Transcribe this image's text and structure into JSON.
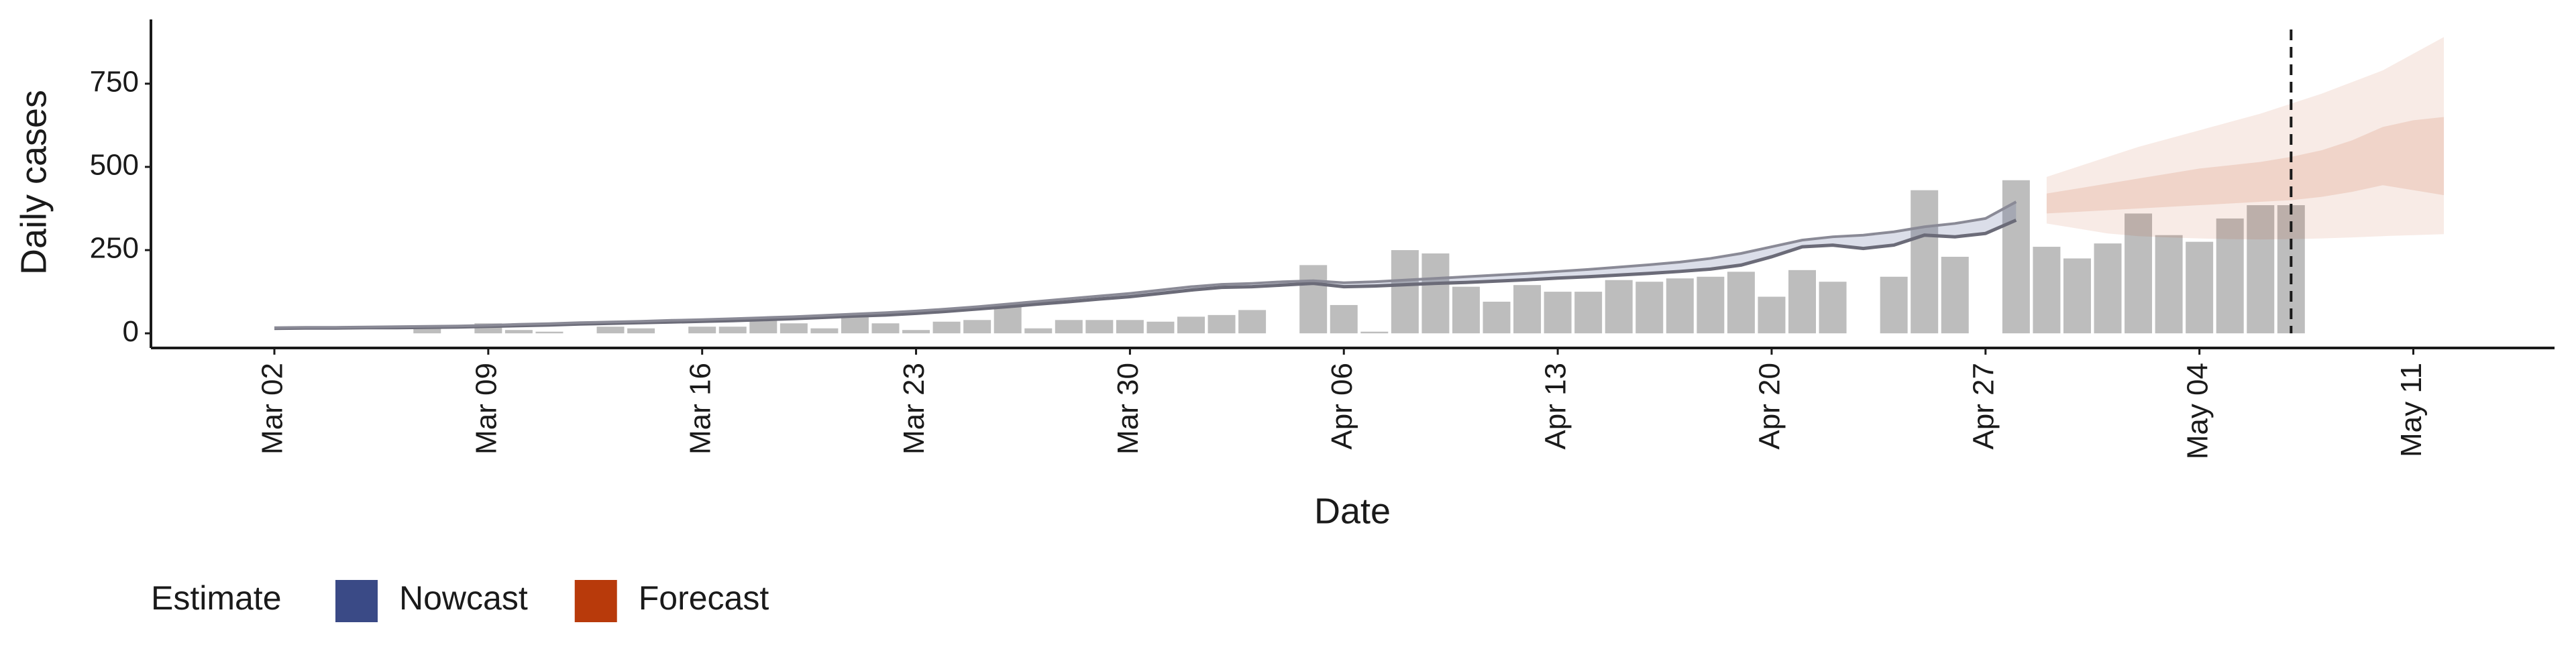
{
  "chart_data": {
    "type": "combo",
    "x_label": "Date",
    "y_label": "Daily cases",
    "legend_title": "Estimate",
    "legend_position": "bottom-left",
    "categories": [
      "Mar 02",
      null,
      null,
      null,
      null,
      null,
      null,
      "Mar 09",
      null,
      null,
      null,
      null,
      null,
      null,
      "Mar 16",
      null,
      null,
      null,
      null,
      null,
      null,
      "Mar 23",
      null,
      null,
      null,
      null,
      null,
      null,
      "Mar 30",
      null,
      null,
      null,
      null,
      null,
      null,
      "Apr 06",
      null,
      null,
      null,
      null,
      null,
      null,
      "Apr 13",
      null,
      null,
      null,
      null,
      null,
      null,
      "Apr 20",
      null,
      null,
      null,
      null,
      null,
      null,
      "Apr 27",
      null,
      null,
      null,
      null,
      null,
      null,
      "May 04",
      null,
      null,
      null,
      null,
      null,
      null,
      "May 11",
      null
    ],
    "ylim": [
      -44,
      943
    ],
    "yticks": [
      0,
      250,
      500,
      750
    ],
    "grid": false,
    "bars": {
      "color": "#bdbdbd",
      "values": [
        null,
        null,
        null,
        null,
        null,
        15,
        null,
        30,
        10,
        5,
        null,
        20,
        15,
        null,
        20,
        20,
        40,
        30,
        15,
        50,
        30,
        10,
        35,
        40,
        85,
        15,
        40,
        40,
        40,
        35,
        50,
        55,
        70,
        null,
        205,
        85,
        5,
        250,
        240,
        140,
        95,
        145,
        125,
        125,
        160,
        155,
        165,
        170,
        185,
        110,
        190,
        155,
        null,
        170,
        430,
        230,
        null,
        460,
        260,
        225,
        270,
        360,
        295,
        275,
        345,
        385,
        385,
        null,
        null,
        null,
        null,
        null
      ]
    },
    "series": [
      {
        "name": "Nowcast",
        "color": "#3a4a86",
        "lower": [
          15,
          16,
          16,
          17,
          17,
          18,
          19,
          21,
          23,
          25,
          28,
          30,
          32,
          34,
          36,
          38,
          41,
          44,
          48,
          52,
          55,
          60,
          66,
          73,
          80,
          88,
          95,
          103,
          110,
          120,
          130,
          138,
          140,
          145,
          150,
          140,
          142,
          146,
          150,
          153,
          157,
          161,
          166,
          170,
          175,
          180,
          186,
          193,
          205,
          230,
          260,
          265,
          255,
          265,
          295,
          290,
          300,
          340,
          null,
          null,
          null,
          null,
          null,
          null,
          null,
          null,
          null,
          null,
          null,
          null,
          null,
          null
        ],
        "upper": [
          17,
          18,
          18,
          19,
          20,
          21,
          22,
          24,
          27,
          29,
          32,
          34,
          36,
          39,
          41,
          44,
          47,
          50,
          54,
          58,
          62,
          67,
          73,
          80,
          88,
          96,
          104,
          112,
          120,
          130,
          140,
          147,
          150,
          155,
          158,
          152,
          155,
          160,
          165,
          170,
          175,
          180,
          186,
          192,
          199,
          206,
          214,
          225,
          240,
          260,
          280,
          290,
          295,
          305,
          320,
          330,
          345,
          395,
          null,
          null,
          null,
          null,
          null,
          null,
          null,
          null,
          null,
          null,
          null,
          null,
          null,
          null
        ]
      },
      {
        "name": "Forecast",
        "color": "#b83a0b",
        "lower": [
          null,
          null,
          null,
          null,
          null,
          null,
          null,
          null,
          null,
          null,
          null,
          null,
          null,
          null,
          null,
          null,
          null,
          null,
          null,
          null,
          null,
          null,
          null,
          null,
          null,
          null,
          null,
          null,
          null,
          null,
          null,
          null,
          null,
          null,
          null,
          null,
          null,
          null,
          null,
          null,
          null,
          null,
          null,
          null,
          null,
          null,
          null,
          null,
          null,
          null,
          null,
          null,
          null,
          null,
          null,
          null,
          null,
          null,
          360,
          365,
          370,
          375,
          380,
          385,
          390,
          395,
          400,
          410,
          425,
          445,
          430,
          415
        ],
        "upper": [
          null,
          null,
          null,
          null,
          null,
          null,
          null,
          null,
          null,
          null,
          null,
          null,
          null,
          null,
          null,
          null,
          null,
          null,
          null,
          null,
          null,
          null,
          null,
          null,
          null,
          null,
          null,
          null,
          null,
          null,
          null,
          null,
          null,
          null,
          null,
          null,
          null,
          null,
          null,
          null,
          null,
          null,
          null,
          null,
          null,
          null,
          null,
          null,
          null,
          null,
          null,
          null,
          null,
          null,
          null,
          null,
          null,
          null,
          420,
          435,
          450,
          465,
          480,
          495,
          505,
          515,
          530,
          550,
          580,
          620,
          640,
          650
        ],
        "lower_outer": [
          null,
          null,
          null,
          null,
          null,
          null,
          null,
          null,
          null,
          null,
          null,
          null,
          null,
          null,
          null,
          null,
          null,
          null,
          null,
          null,
          null,
          null,
          null,
          null,
          null,
          null,
          null,
          null,
          null,
          null,
          null,
          null,
          null,
          null,
          null,
          null,
          null,
          null,
          null,
          null,
          null,
          null,
          null,
          null,
          null,
          null,
          null,
          null,
          null,
          null,
          null,
          null,
          null,
          null,
          null,
          null,
          null,
          null,
          330,
          315,
          300,
          292,
          288,
          285,
          283,
          282,
          283,
          285,
          288,
          292,
          295,
          298
        ],
        "upper_outer": [
          null,
          null,
          null,
          null,
          null,
          null,
          null,
          null,
          null,
          null,
          null,
          null,
          null,
          null,
          null,
          null,
          null,
          null,
          null,
          null,
          null,
          null,
          null,
          null,
          null,
          null,
          null,
          null,
          null,
          null,
          null,
          null,
          null,
          null,
          null,
          null,
          null,
          null,
          null,
          null,
          null,
          null,
          null,
          null,
          null,
          null,
          null,
          null,
          null,
          null,
          null,
          null,
          null,
          null,
          null,
          null,
          null,
          null,
          470,
          500,
          530,
          560,
          585,
          610,
          635,
          660,
          690,
          720,
          755,
          790,
          840,
          890
        ]
      }
    ]
  }
}
